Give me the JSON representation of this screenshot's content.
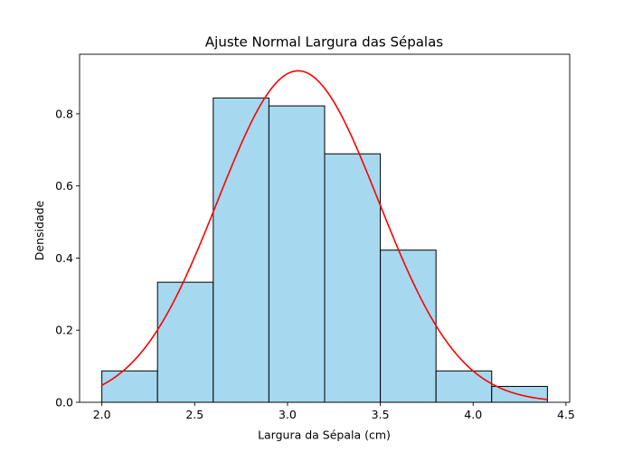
{
  "chart_data": {
    "type": "bar",
    "title": "Ajuste Normal Largura das Sépalas",
    "xlabel": "Largura da Sépala (cm)",
    "ylabel": "Densidade",
    "xlim": [
      1.88,
      4.52
    ],
    "ylim": [
      0.0,
      0.9652
    ],
    "xticks": [
      "2.0",
      "2.5",
      "3.0",
      "3.5",
      "4.0",
      "4.5"
    ],
    "yticks": [
      "0.0",
      "0.2",
      "0.4",
      "0.6",
      "0.8"
    ],
    "grid": false,
    "bins": [
      {
        "start": 2.0,
        "end": 2.3,
        "value": 0.087
      },
      {
        "start": 2.3,
        "end": 2.6,
        "value": 0.333
      },
      {
        "start": 2.6,
        "end": 2.9,
        "value": 0.844
      },
      {
        "start": 2.9,
        "end": 3.2,
        "value": 0.822
      },
      {
        "start": 3.2,
        "end": 3.5,
        "value": 0.689
      },
      {
        "start": 3.5,
        "end": 3.8,
        "value": 0.422
      },
      {
        "start": 3.8,
        "end": 4.1,
        "value": 0.087
      },
      {
        "start": 4.1,
        "end": 4.4,
        "value": 0.044
      }
    ],
    "normal_fit": {
      "mean": 3.057,
      "std": 0.434,
      "x_start": 2.0,
      "x_end": 4.4
    },
    "colors": {
      "bar_fill": "#a6d9ef",
      "bar_edge": "#000000",
      "curve": "#ff0000"
    }
  }
}
